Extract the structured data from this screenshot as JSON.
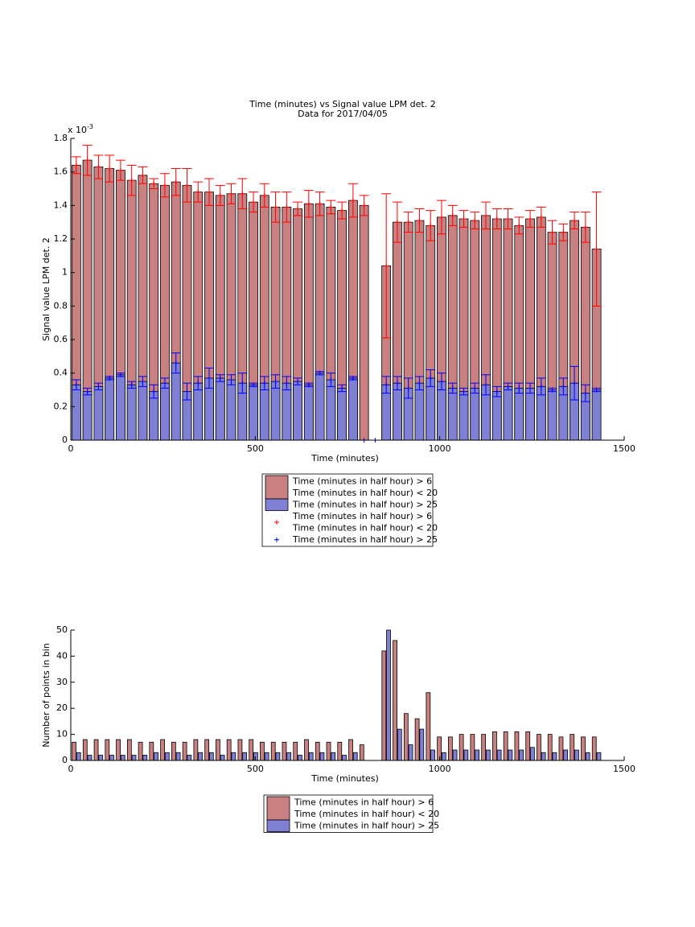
{
  "chart_data": [
    {
      "type": "bar",
      "barmode": "overlay",
      "title": [
        "Time (minutes) vs Signal value LPM det. 2",
        "Data for 2017/04/05"
      ],
      "x_label": "Time (minutes)",
      "y_label": "Signal value LPM det. 2",
      "y_multiplier": {
        "base": "x 10",
        "exponent": "-3"
      },
      "x": [
        15,
        45,
        75,
        105,
        135,
        165,
        195,
        225,
        255,
        285,
        315,
        345,
        375,
        405,
        435,
        465,
        495,
        525,
        555,
        585,
        615,
        645,
        675,
        705,
        735,
        765,
        795,
        825,
        855,
        885,
        915,
        945,
        975,
        1005,
        1035,
        1065,
        1095,
        1125,
        1155,
        1185,
        1215,
        1245,
        1275,
        1305,
        1335,
        1365,
        1395,
        1425
      ],
      "xlim": [
        0,
        1500
      ],
      "xticks": [
        0,
        500,
        1000,
        1500
      ],
      "ylim": [
        0,
        1.8
      ],
      "yticks": [
        0,
        0.2,
        0.4,
        0.6,
        0.8,
        1,
        1.2,
        1.4,
        1.6,
        1.8
      ],
      "legend_styles": [
        "patch",
        "marker"
      ],
      "series": [
        {
          "name": [
            "Time (minutes in half hour) > 6",
            "Time (minutes in half hour) < 20"
          ],
          "color": "#c98080",
          "error_color": "#ff0000",
          "values": [
            1.64,
            1.67,
            1.63,
            1.62,
            1.61,
            1.55,
            1.58,
            1.53,
            1.52,
            1.54,
            1.52,
            1.48,
            1.48,
            1.46,
            1.47,
            1.47,
            1.42,
            1.46,
            1.39,
            1.39,
            1.38,
            1.41,
            1.41,
            1.39,
            1.37,
            1.43,
            1.4,
            null,
            1.04,
            1.3,
            1.3,
            1.31,
            1.28,
            1.33,
            1.34,
            1.32,
            1.31,
            1.34,
            1.32,
            1.32,
            1.28,
            1.32,
            1.33,
            1.24,
            1.24,
            1.31,
            1.27,
            1.14
          ],
          "errors": [
            0.05,
            0.09,
            0.07,
            0.08,
            0.06,
            0.09,
            0.05,
            0.03,
            0.07,
            0.08,
            0.1,
            0.06,
            0.08,
            0.06,
            0.06,
            0.09,
            0.06,
            0.07,
            0.09,
            0.09,
            0.04,
            0.08,
            0.07,
            0.04,
            0.05,
            0.1,
            0.06,
            null,
            0.43,
            0.12,
            0.06,
            0.07,
            0.09,
            0.1,
            0.06,
            0.05,
            0.05,
            0.08,
            0.06,
            0.06,
            0.05,
            0.05,
            0.06,
            0.07,
            0.05,
            0.05,
            0.09,
            0.34
          ]
        },
        {
          "name": [
            "Time (minutes in half hour) > 25"
          ],
          "color": "#7f7fd3",
          "error_color": "#0000ff",
          "values": [
            0.33,
            0.29,
            0.32,
            0.37,
            0.39,
            0.33,
            0.35,
            0.29,
            0.34,
            0.46,
            0.29,
            0.34,
            0.37,
            0.37,
            0.36,
            0.34,
            0.33,
            0.34,
            0.35,
            0.34,
            0.35,
            0.33,
            0.4,
            0.36,
            0.31,
            0.37,
            0,
            0,
            0.33,
            0.34,
            0.31,
            0.34,
            0.37,
            0.35,
            0.31,
            0.29,
            0.31,
            0.33,
            0.29,
            0.32,
            0.31,
            0.31,
            0.32,
            0.3,
            0.32,
            0.34,
            0.28,
            0.3
          ],
          "errors": [
            0.03,
            0.02,
            0.02,
            0.01,
            0.01,
            0.02,
            0.03,
            0.04,
            0.03,
            0.06,
            0.05,
            0.04,
            0.06,
            0.02,
            0.03,
            0.06,
            0.01,
            0.04,
            0.04,
            0.04,
            0.02,
            0.01,
            0.01,
            0.04,
            0.02,
            0.01,
            null,
            null,
            0.05,
            0.04,
            0.06,
            0.04,
            0.05,
            0.05,
            0.03,
            0.02,
            0.03,
            0.06,
            0.03,
            0.02,
            0.03,
            0.03,
            0.05,
            0.01,
            0.05,
            0.1,
            0.05,
            0.01
          ]
        }
      ]
    },
    {
      "type": "bar",
      "barmode": "group",
      "x_label": "Time (minutes)",
      "y_label": "Number of points in bin",
      "x": [
        15,
        45,
        75,
        105,
        135,
        165,
        195,
        225,
        255,
        285,
        315,
        345,
        375,
        405,
        435,
        465,
        495,
        525,
        555,
        585,
        615,
        645,
        675,
        705,
        735,
        765,
        795,
        825,
        855,
        885,
        915,
        945,
        975,
        1005,
        1035,
        1065,
        1095,
        1125,
        1155,
        1185,
        1215,
        1245,
        1275,
        1305,
        1335,
        1365,
        1395,
        1425
      ],
      "xlim": [
        0,
        1500
      ],
      "xticks": [
        0,
        500,
        1000,
        1500
      ],
      "ylim": [
        0,
        50
      ],
      "yticks": [
        0,
        10,
        20,
        30,
        40,
        50
      ],
      "legend_styles": [
        "patch"
      ],
      "series": [
        {
          "name": [
            "Time (minutes in half hour) > 6",
            "Time (minutes in half hour) < 20"
          ],
          "color": "#c98080",
          "values": [
            7,
            8,
            8,
            8,
            8,
            8,
            7,
            7,
            8,
            7,
            7,
            8,
            8,
            8,
            8,
            8,
            8,
            7,
            7,
            7,
            7,
            8,
            7,
            7,
            7,
            8,
            6,
            0,
            42,
            46,
            18,
            16,
            26,
            9,
            9,
            10,
            10,
            10,
            11,
            11,
            11,
            11,
            10,
            10,
            9,
            10,
            9,
            9
          ]
        },
        {
          "name": [
            "Time (minutes in half hour) > 25"
          ],
          "color": "#7f7fd3",
          "values": [
            3,
            2,
            2,
            2,
            2,
            2,
            2,
            3,
            3,
            3,
            2,
            3,
            3,
            2,
            3,
            3,
            3,
            3,
            3,
            3,
            2,
            3,
            3,
            3,
            2,
            3,
            0,
            0,
            50,
            12,
            6,
            12,
            4,
            3,
            4,
            4,
            4,
            4,
            4,
            4,
            4,
            5,
            3,
            3,
            4,
            4,
            3,
            3
          ]
        }
      ]
    }
  ]
}
